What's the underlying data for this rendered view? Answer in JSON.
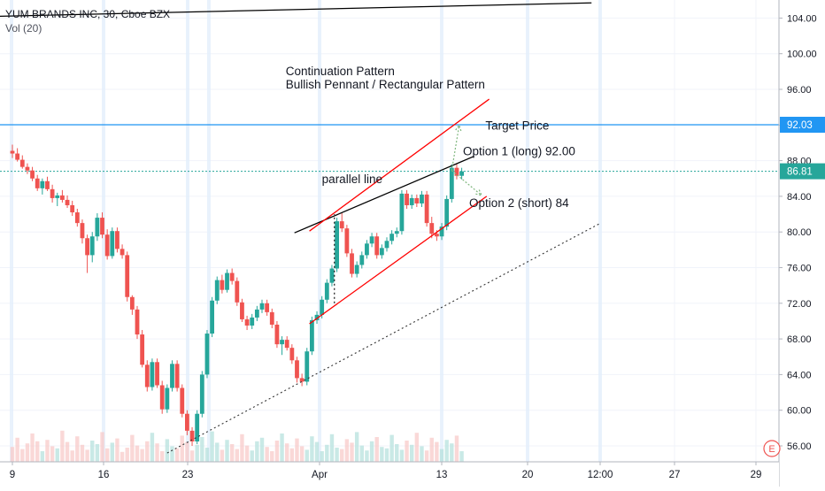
{
  "chart_data": {
    "type": "candlestick",
    "symbol_line": "YUM BRANDS INC, 30, Cboe BZX",
    "indicator": "Vol (20)",
    "ylim": [
      54.4,
      106
    ],
    "y_ticks": [
      "104.00",
      "100.00",
      "96.00",
      "92.00",
      "88.00",
      "84.00",
      "80.00",
      "76.00",
      "72.00",
      "68.00",
      "64.00",
      "60.00",
      "56.00"
    ],
    "x_ticks": [
      "9",
      "16",
      "23",
      "Apr",
      "13",
      "20",
      "12:00",
      "27",
      "29"
    ],
    "price_badges": [
      {
        "label": "92.03",
        "value": 92.03,
        "color": "#2196f3"
      },
      {
        "label": "86.81",
        "value": 86.81,
        "color": "#26a69a"
      }
    ],
    "horizontal_lines": [
      {
        "value": 92.03,
        "style": "solid",
        "color": "#2196f3"
      },
      {
        "value": 86.81,
        "style": "dotted",
        "color": "#26a69a"
      }
    ],
    "annotations": [
      {
        "text": "Continuation Pattern",
        "x": 10.95,
        "y": 97.6
      },
      {
        "text": "Bullish Pennant / Rectangular Pattern",
        "x": 10.95,
        "y": 96.1
      },
      {
        "text": "parallel line",
        "x": 12.4,
        "y": 85.5
      },
      {
        "text": "Target Price",
        "x": 18.95,
        "y": 91.5
      },
      {
        "text": "Option 1 (long) 92.00",
        "x": 18.05,
        "y": 88.6
      },
      {
        "text": "Option 2 (short) 84",
        "x": 18.3,
        "y": 82.8
      }
    ],
    "trend_lines": [
      {
        "name": "top-line",
        "color": "#000000",
        "style": "solid",
        "from": [
          -0.5,
          104.2
        ],
        "to": [
          23.2,
          105.7
        ]
      },
      {
        "name": "pennant-upper",
        "color": "#000000",
        "style": "solid",
        "from": [
          11.3,
          79.9
        ],
        "to": [
          18.5,
          88.5
        ]
      },
      {
        "name": "channel-upper",
        "color": "#ff0000",
        "style": "solid",
        "from": [
          11.9,
          80.1
        ],
        "to": [
          19.1,
          94.9
        ]
      },
      {
        "name": "channel-lower",
        "color": "#ff0000",
        "style": "solid",
        "from": [
          11.9,
          69.7
        ],
        "to": [
          19.0,
          84.0
        ]
      },
      {
        "name": "long-support",
        "color": "#333333",
        "style": "dotted",
        "from": [
          6.2,
          55.2
        ],
        "to": [
          23.5,
          80.9
        ]
      },
      {
        "name": "flag-pole",
        "color": "#000000",
        "style": "dotted",
        "from": [
          12.9,
          72.0
        ],
        "to": [
          12.9,
          82.0
        ]
      }
    ],
    "projection_arrows": [
      {
        "name": "option-1-arrow",
        "from": [
          17.6,
          86.9
        ],
        "to": [
          17.9,
          92.0
        ]
      },
      {
        "name": "option-2-arrow",
        "from": [
          17.6,
          86.9
        ],
        "to": [
          18.8,
          84.1
        ]
      }
    ],
    "candles": [
      [
        0,
        89.1,
        89.8,
        88.3,
        88.8
      ],
      [
        0.2,
        88.8,
        89.4,
        87.9,
        88.1
      ],
      [
        0.4,
        88.1,
        88.6,
        87.1,
        87.3
      ],
      [
        0.6,
        87.3,
        87.7,
        86.5,
        86.9
      ],
      [
        0.8,
        86.9,
        87.3,
        85.7,
        86.0
      ],
      [
        1.0,
        86.0,
        86.4,
        84.6,
        84.9
      ],
      [
        1.2,
        84.9,
        86.0,
        84.2,
        85.7
      ],
      [
        1.4,
        85.7,
        86.2,
        84.6,
        84.8
      ],
      [
        1.6,
        84.8,
        85.3,
        83.3,
        83.8
      ],
      [
        1.8,
        83.8,
        84.4,
        82.9,
        84.1
      ],
      [
        2.0,
        84.1,
        84.7,
        83.3,
        83.6
      ],
      [
        2.2,
        83.6,
        84.1,
        82.7,
        83.0
      ],
      [
        2.4,
        83.0,
        83.5,
        81.8,
        82.2
      ],
      [
        2.6,
        82.2,
        82.6,
        80.6,
        81.0
      ],
      [
        2.8,
        81.0,
        81.4,
        78.7,
        79.3
      ],
      [
        3.0,
        79.3,
        79.7,
        75.4,
        77.4
      ],
      [
        3.2,
        77.4,
        80.0,
        76.6,
        79.5
      ],
      [
        3.4,
        79.5,
        82.1,
        79.0,
        81.6
      ],
      [
        3.6,
        81.6,
        82.2,
        79.3,
        79.7
      ],
      [
        3.8,
        79.7,
        80.3,
        76.9,
        77.3
      ],
      [
        4.0,
        77.3,
        80.5,
        77.0,
        80.1
      ],
      [
        4.2,
        80.1,
        80.5,
        77.7,
        78.1
      ],
      [
        4.4,
        78.1,
        78.6,
        77.0,
        77.4
      ],
      [
        4.6,
        77.4,
        77.8,
        72.2,
        72.7
      ],
      [
        4.8,
        72.7,
        72.9,
        70.7,
        71.3
      ],
      [
        5.0,
        71.3,
        71.7,
        68.0,
        68.5
      ],
      [
        5.2,
        68.5,
        69.0,
        64.8,
        65.1
      ],
      [
        5.4,
        65.1,
        65.6,
        62.1,
        62.6
      ],
      [
        5.6,
        62.6,
        65.8,
        62.2,
        65.4
      ],
      [
        5.8,
        65.4,
        65.8,
        62.5,
        62.8
      ],
      [
        6.0,
        62.8,
        63.3,
        59.6,
        60.1
      ],
      [
        6.2,
        60.1,
        62.9,
        59.7,
        62.5
      ],
      [
        6.4,
        62.5,
        65.6,
        62.1,
        65.2
      ],
      [
        6.6,
        65.2,
        65.6,
        62.1,
        62.5
      ],
      [
        6.8,
        62.5,
        62.9,
        59.2,
        59.6
      ],
      [
        7.0,
        59.6,
        60.0,
        57.2,
        57.7
      ],
      [
        7.2,
        57.7,
        58.1,
        56.0,
        56.5
      ],
      [
        7.4,
        56.5,
        60.0,
        56.2,
        59.6
      ],
      [
        7.6,
        59.6,
        64.4,
        59.2,
        64.0
      ],
      [
        7.8,
        64.0,
        69.0,
        63.6,
        68.6
      ],
      [
        8.0,
        68.6,
        72.7,
        68.2,
        72.3
      ],
      [
        8.2,
        72.3,
        75.0,
        71.9,
        74.6
      ],
      [
        8.4,
        74.6,
        75.2,
        73.1,
        73.5
      ],
      [
        8.6,
        73.5,
        75.8,
        73.2,
        75.4
      ],
      [
        8.8,
        75.4,
        75.9,
        74.1,
        74.5
      ],
      [
        9.0,
        74.5,
        74.9,
        71.7,
        72.1
      ],
      [
        9.2,
        72.1,
        72.5,
        69.9,
        70.2
      ],
      [
        9.4,
        70.2,
        70.6,
        69.0,
        69.5
      ],
      [
        9.6,
        69.5,
        70.8,
        69.1,
        70.4
      ],
      [
        9.8,
        70.4,
        71.7,
        70.0,
        71.3
      ],
      [
        10.0,
        71.3,
        72.4,
        70.9,
        72.0
      ],
      [
        10.2,
        72.0,
        72.4,
        70.6,
        71.0
      ],
      [
        10.4,
        71.0,
        71.4,
        69.2,
        69.6
      ],
      [
        10.6,
        69.6,
        70.0,
        67.0,
        67.4
      ],
      [
        10.8,
        67.4,
        68.3,
        66.2,
        67.9
      ],
      [
        11.0,
        67.9,
        68.3,
        66.7,
        67.0
      ],
      [
        11.2,
        67.0,
        67.4,
        65.2,
        65.6
      ],
      [
        11.4,
        65.6,
        66.0,
        63.1,
        63.6
      ],
      [
        11.6,
        63.6,
        64.1,
        62.7,
        63.2
      ],
      [
        11.8,
        63.2,
        67.0,
        62.8,
        66.6
      ],
      [
        12.0,
        66.6,
        70.5,
        66.2,
        70.1
      ],
      [
        12.2,
        70.1,
        71.1,
        69.7,
        70.7
      ],
      [
        12.4,
        70.7,
        72.8,
        70.3,
        72.4
      ],
      [
        12.6,
        72.4,
        74.7,
        72.0,
        74.3
      ],
      [
        12.8,
        74.3,
        76.3,
        73.9,
        75.9
      ],
      [
        13.0,
        75.9,
        81.6,
        75.5,
        81.2
      ],
      [
        13.2,
        81.2,
        82.1,
        80.0,
        80.4
      ],
      [
        13.4,
        80.4,
        80.8,
        77.2,
        77.6
      ],
      [
        13.6,
        77.6,
        78.1,
        74.9,
        75.3
      ],
      [
        13.8,
        75.3,
        76.7,
        74.9,
        76.3
      ],
      [
        14.0,
        76.3,
        77.8,
        75.9,
        77.4
      ],
      [
        14.2,
        77.4,
        79.1,
        77.0,
        78.7
      ],
      [
        14.4,
        78.7,
        79.9,
        78.3,
        79.5
      ],
      [
        14.6,
        79.5,
        79.9,
        77.0,
        77.4
      ],
      [
        14.8,
        77.4,
        78.6,
        77.0,
        78.2
      ],
      [
        15.0,
        78.2,
        79.4,
        77.8,
        79.0
      ],
      [
        15.2,
        79.0,
        80.2,
        78.6,
        79.8
      ],
      [
        15.4,
        79.8,
        80.5,
        79.4,
        80.1
      ],
      [
        15.6,
        80.1,
        84.7,
        79.7,
        84.3
      ],
      [
        15.8,
        84.3,
        84.7,
        82.6,
        83.0
      ],
      [
        16.0,
        83.0,
        84.2,
        82.6,
        83.8
      ],
      [
        16.2,
        83.8,
        84.2,
        82.8,
        83.2
      ],
      [
        16.4,
        83.2,
        84.6,
        82.8,
        84.2
      ],
      [
        16.6,
        84.2,
        84.6,
        80.6,
        81.0
      ],
      [
        16.8,
        81.0,
        81.7,
        79.3,
        79.8
      ],
      [
        17.0,
        79.8,
        80.2,
        79.0,
        79.5
      ],
      [
        17.2,
        79.5,
        81.0,
        79.1,
        80.6
      ],
      [
        17.4,
        80.6,
        84.1,
        80.2,
        83.7
      ],
      [
        17.6,
        83.7,
        87.6,
        83.3,
        87.2
      ],
      [
        17.8,
        87.2,
        87.6,
        85.9,
        86.3
      ],
      [
        18.0,
        86.3,
        87.2,
        85.9,
        86.8
      ]
    ],
    "volumes": [
      2.1,
      3.4,
      1.8,
      2.6,
      4.0,
      2.9,
      1.5,
      3.1,
      2.2,
      1.9,
      4.4,
      2.8,
      1.6,
      3.6,
      2.4,
      1.7,
      3.0,
      2.5,
      4.2,
      1.9,
      2.7,
      3.3,
      1.4,
      2.0,
      3.8,
      2.3,
      1.8,
      2.9,
      4.1,
      2.6,
      1.5,
      3.2,
      2.2,
      1.9,
      3.7,
      2.8,
      1.6,
      2.4,
      3.5,
      2.0,
      4.3,
      2.7,
      1.7,
      3.1,
      2.5,
      1.8,
      3.9,
      2.3,
      1.6,
      2.9,
      3.4,
      2.1,
      1.5,
      3.0,
      4.0,
      2.6,
      1.9,
      3.3,
      2.2,
      1.7,
      3.6,
      2.8,
      1.5,
      2.4,
      3.9,
      2.0,
      1.8,
      3.2,
      2.7,
      4.2,
      2.3,
      1.6,
      2.9,
      3.5,
      2.1,
      1.9,
      3.8,
      2.5,
      1.7,
      3.0,
      2.4,
      4.1,
      2.2,
      1.6,
      3.4,
      2.8,
      1.8,
      3.1,
      2.6,
      3.7,
      1.5
    ],
    "bull_color": "#26a69a",
    "bear_color": "#ef5350",
    "grid": true
  },
  "ui": {
    "badge_e": "E"
  }
}
